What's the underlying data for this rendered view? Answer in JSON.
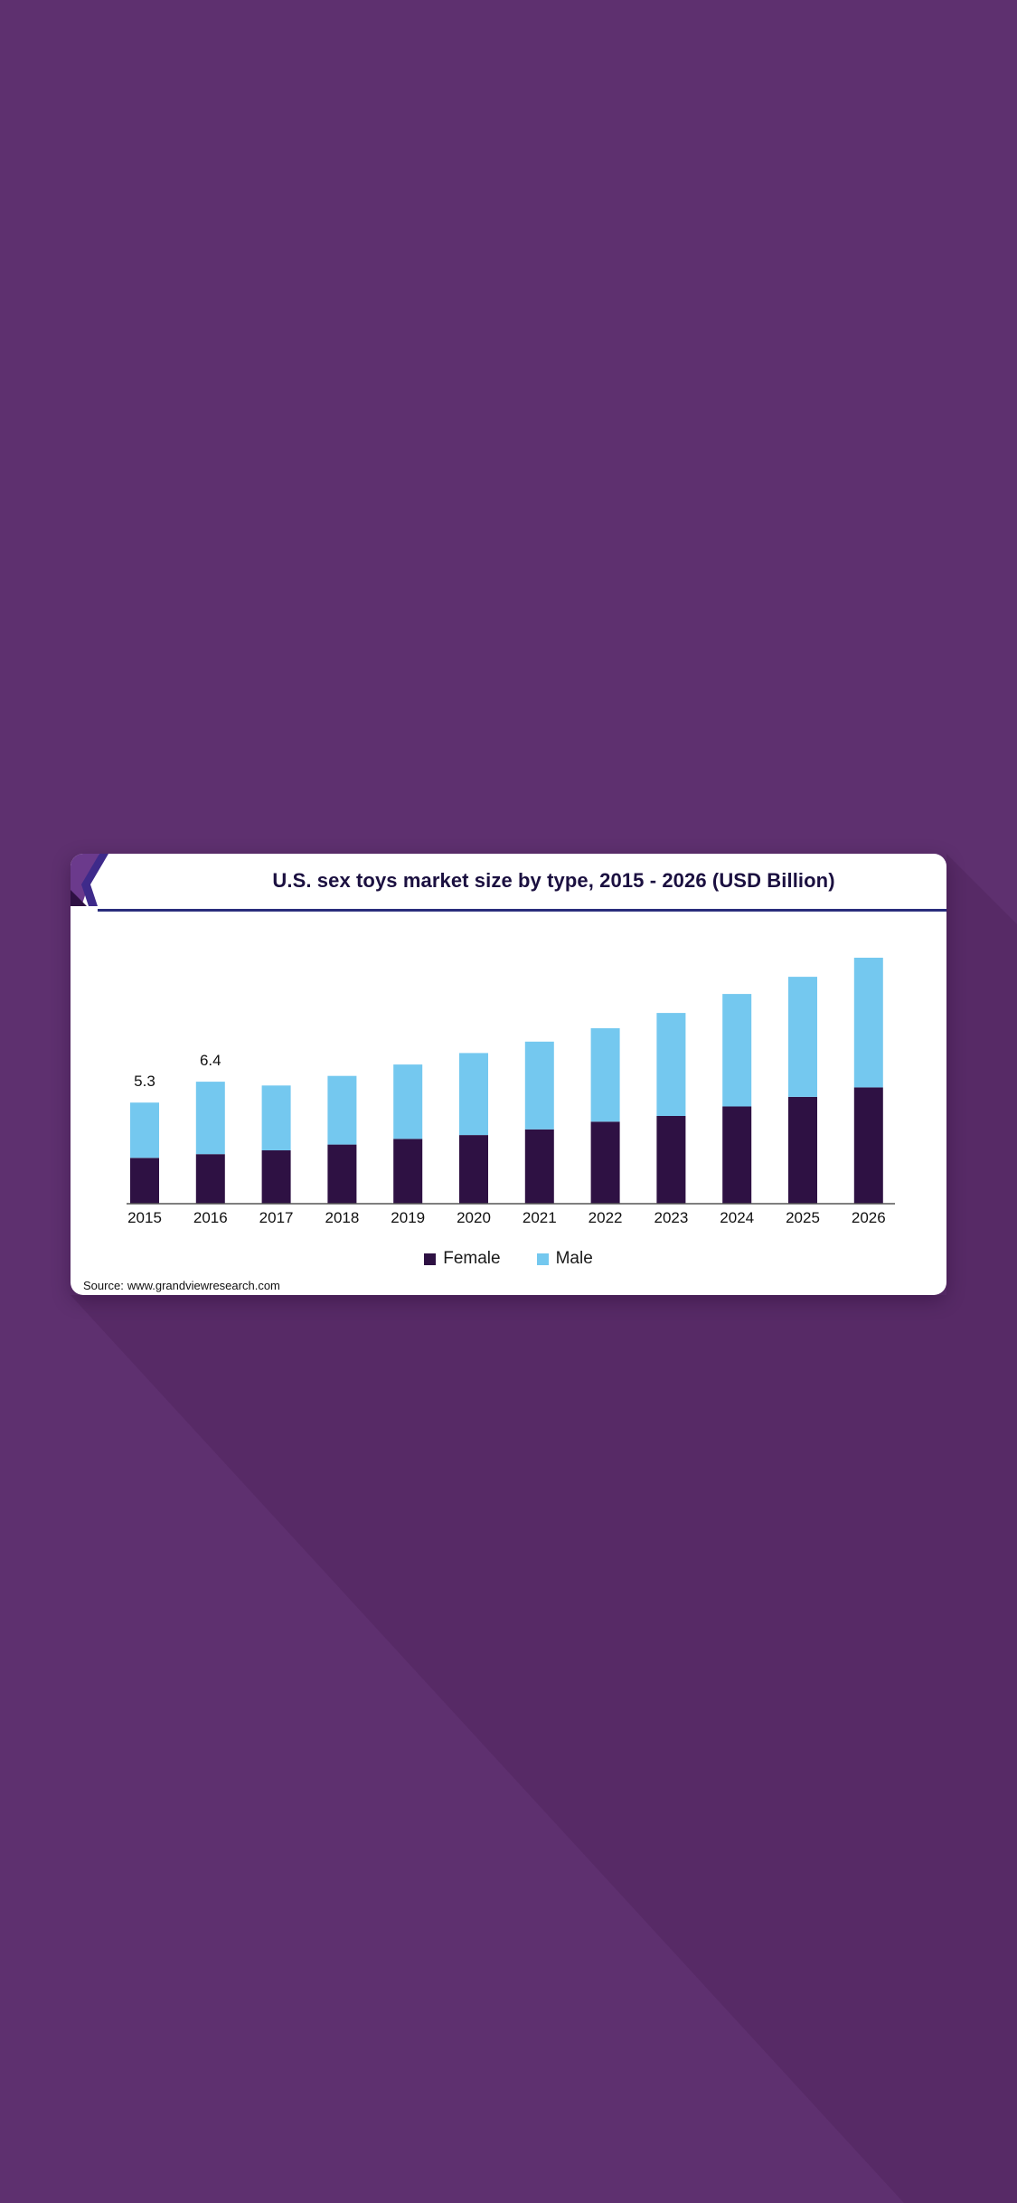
{
  "colors": {
    "background": "#5e306f",
    "female": "#2e1143",
    "male": "#74c8ef",
    "title": "#1b1040",
    "header_rule": "#2a2d7c"
  },
  "source": {
    "prefix": "Source:",
    "url": "www.grandviewresearch.com"
  },
  "chart_data": {
    "type": "bar",
    "stacked": true,
    "title": "U.S. sex toys market size by type, 2015 - 2026 (USD Billion)",
    "xlabel": "",
    "ylabel": "",
    "categories": [
      "2015",
      "2016",
      "2017",
      "2018",
      "2019",
      "2020",
      "2021",
      "2022",
      "2023",
      "2024",
      "2025",
      "2026"
    ],
    "series": [
      {
        "name": "Female",
        "values": [
          2.4,
          2.6,
          2.8,
          3.1,
          3.4,
          3.6,
          3.9,
          4.3,
          4.6,
          5.1,
          5.6,
          6.1
        ]
      },
      {
        "name": "Male",
        "values": [
          2.9,
          3.8,
          3.4,
          3.6,
          3.9,
          4.3,
          4.6,
          4.9,
          5.4,
          5.9,
          6.3,
          6.8
        ]
      }
    ],
    "data_labels": [
      "5.3",
      "6.4",
      "",
      "",
      "",
      "",
      "",
      "",
      "",
      "",
      "",
      ""
    ],
    "ylim": [
      0,
      12.9
    ],
    "grid": false,
    "legend_position": "bottom-center"
  }
}
